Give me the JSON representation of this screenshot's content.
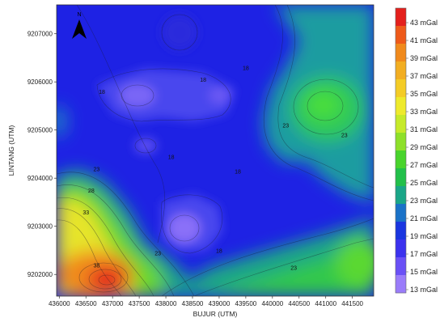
{
  "map": {
    "x_axis_title": "BUJUR (UTM)",
    "y_axis_title": "LINTANG (UTM)",
    "x_ticks": [
      "436000",
      "436500",
      "437000",
      "437500",
      "438000",
      "438500",
      "439000",
      "439500",
      "440000",
      "440500",
      "441000",
      "441500"
    ],
    "y_ticks": [
      "9207000",
      "9206000",
      "9205000",
      "9204000",
      "9203000",
      "9202000"
    ],
    "north_label": "N",
    "contour_labels": [
      {
        "text": "18",
        "x": 436800,
        "y": 9205750
      },
      {
        "text": "18",
        "x": 438700,
        "y": 9206000
      },
      {
        "text": "18",
        "x": 439500,
        "y": 9206250
      },
      {
        "text": "18",
        "x": 438100,
        "y": 9204400
      },
      {
        "text": "18",
        "x": 439350,
        "y": 9204100
      },
      {
        "text": "18",
        "x": 439000,
        "y": 9202450
      },
      {
        "text": "23",
        "x": 440250,
        "y": 9205050
      },
      {
        "text": "23",
        "x": 441350,
        "y": 9204850
      },
      {
        "text": "23",
        "x": 436700,
        "y": 9204150
      },
      {
        "text": "28",
        "x": 436600,
        "y": 9203700
      },
      {
        "text": "33",
        "x": 436500,
        "y": 9203250
      },
      {
        "text": "38",
        "x": 436700,
        "y": 9202150
      },
      {
        "text": "23",
        "x": 437850,
        "y": 9202400
      },
      {
        "text": "23",
        "x": 440400,
        "y": 9202100
      }
    ],
    "colors": {
      "low": "#9b7bff",
      "mid": "#1a1ae6",
      "high": "#e83418"
    }
  },
  "legend": {
    "labels": [
      "43 mGal",
      "41 mGal",
      "39 mGal",
      "37 mGal",
      "35 mGal",
      "33 mGal",
      "31 mGal",
      "29 mGal",
      "27 mGal",
      "25 mGal",
      "23 mGal",
      "21 mGal",
      "19 mGal",
      "17 mGal",
      "15 mGal",
      "13 mGal"
    ],
    "colors": [
      "#e4201c",
      "#ee5a1a",
      "#f08a1c",
      "#f2ae22",
      "#f4cc26",
      "#eeea2c",
      "#c6ea2a",
      "#8ee02a",
      "#48d42c",
      "#22c04a",
      "#1aa688",
      "#1a72c8",
      "#1a36e0",
      "#3c32ee",
      "#6a50f6",
      "#9a7cfa"
    ]
  }
}
